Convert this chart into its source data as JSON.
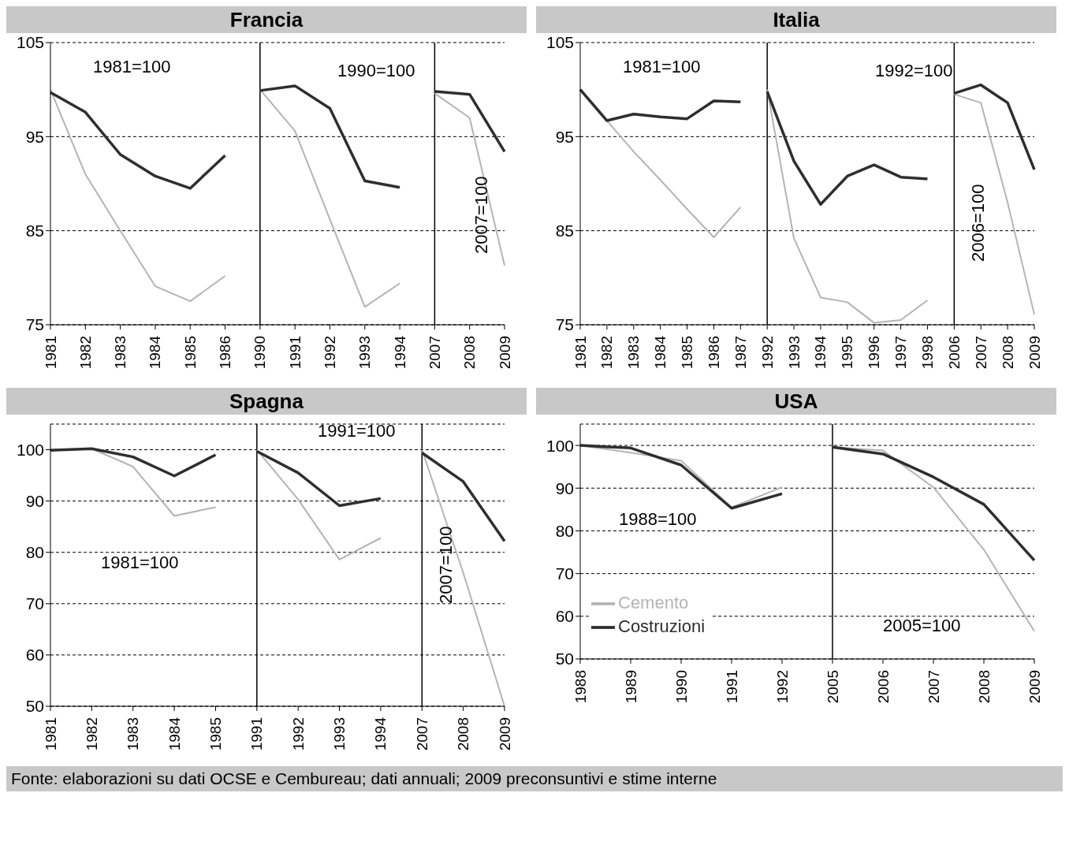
{
  "chart_data": [
    {
      "type": "line",
      "title": "Francia",
      "categories": [
        "1981",
        "1982",
        "1983",
        "1984",
        "1985",
        "1986",
        "1990",
        "1991",
        "1992",
        "1993",
        "1994",
        "2007",
        "2008",
        "2009"
      ],
      "ylim": [
        75,
        105
      ],
      "yticks": [
        75,
        85,
        95,
        105
      ],
      "grid": "y",
      "line_style": "solid",
      "marker": "none",
      "series": [
        {
          "color": "#b4b4b4",
          "values": [
            100,
            91,
            85,
            79.1,
            77.5,
            80.2,
            null,
            null,
            null,
            null,
            null,
            null,
            null,
            null
          ]
        },
        {
          "color": "#2e2e2e",
          "values": [
            99.7,
            97.6,
            93.1,
            90.8,
            89.5,
            93.0,
            null,
            null,
            null,
            null,
            null,
            null,
            null,
            null
          ]
        },
        {
          "color": "#b4b4b4",
          "values": [
            null,
            null,
            null,
            null,
            null,
            null,
            100,
            95.6,
            86.2,
            76.9,
            79.4,
            null,
            null,
            null
          ]
        },
        {
          "color": "#2e2e2e",
          "values": [
            null,
            null,
            null,
            null,
            null,
            null,
            99.9,
            100.4,
            98,
            90.3,
            89.6,
            null,
            null,
            null
          ]
        },
        {
          "color": "#b4b4b4",
          "values": [
            null,
            null,
            null,
            null,
            null,
            null,
            null,
            null,
            null,
            null,
            null,
            99.6,
            97,
            81.3
          ]
        },
        {
          "color": "#2e2e2e",
          "values": [
            null,
            null,
            null,
            null,
            null,
            null,
            null,
            null,
            null,
            null,
            null,
            99.8,
            99.5,
            93.4
          ]
        }
      ],
      "ref_lines": [
        {
          "axis": "x",
          "value": "1990",
          "color": "#000000"
        },
        {
          "axis": "x",
          "value": "2007",
          "color": "#000000"
        }
      ],
      "annotations": [
        "1981=100",
        "1990=100",
        "2007=100"
      ]
    },
    {
      "type": "line",
      "title": "Italia",
      "categories": [
        "1981",
        "1982",
        "1983",
        "1984",
        "1985",
        "1986",
        "1987",
        "1992",
        "1993",
        "1994",
        "1995",
        "1996",
        "1997",
        "1998",
        "2006",
        "2007",
        "2008",
        "2009"
      ],
      "ylim": [
        75,
        105
      ],
      "yticks": [
        75,
        85,
        95,
        105
      ],
      "grid": "y",
      "line_style": "solid",
      "marker": "none",
      "series": [
        {
          "color": "#b4b4b4",
          "values": [
            100,
            96.7,
            93.4,
            90.4,
            87.3,
            84.3,
            87.5,
            null,
            null,
            null,
            null,
            null,
            null,
            null,
            null,
            null,
            null,
            null
          ]
        },
        {
          "color": "#2e2e2e",
          "values": [
            100,
            96.7,
            97.4,
            97.1,
            96.9,
            98.8,
            98.7,
            null,
            null,
            null,
            null,
            null,
            null,
            null,
            null,
            null,
            null,
            null
          ]
        },
        {
          "color": "#b4b4b4",
          "values": [
            null,
            null,
            null,
            null,
            null,
            null,
            null,
            100,
            84.2,
            77.9,
            77.4,
            75.2,
            75.5,
            77.6,
            null,
            null,
            null,
            null
          ]
        },
        {
          "color": "#2e2e2e",
          "values": [
            null,
            null,
            null,
            null,
            null,
            null,
            null,
            99.8,
            92.4,
            87.8,
            90.8,
            92,
            90.7,
            90.5,
            null,
            null,
            null,
            null
          ]
        },
        {
          "color": "#b4b4b4",
          "values": [
            null,
            null,
            null,
            null,
            null,
            null,
            null,
            null,
            null,
            null,
            null,
            null,
            null,
            null,
            99.5,
            98.6,
            88,
            76.1
          ]
        },
        {
          "color": "#2e2e2e",
          "values": [
            null,
            null,
            null,
            null,
            null,
            null,
            null,
            null,
            null,
            null,
            null,
            null,
            null,
            null,
            99.6,
            100.5,
            98.6,
            91.5
          ]
        }
      ],
      "ref_lines": [
        {
          "axis": "x",
          "value": "1992",
          "color": "#000000"
        },
        {
          "axis": "x",
          "value": "2006",
          "color": "#000000"
        }
      ],
      "annotations": [
        "1981=100",
        "1992=100",
        "2006=100"
      ]
    },
    {
      "type": "line",
      "title": "Spagna",
      "categories": [
        "1981",
        "1982",
        "1983",
        "1984",
        "1985",
        "1991",
        "1992",
        "1993",
        "1994",
        "2007",
        "2008",
        "2009"
      ],
      "ylim": [
        50,
        105
      ],
      "yticks": [
        50,
        60,
        70,
        80,
        90,
        100
      ],
      "grid": "y",
      "line_style": "solid",
      "marker": "none",
      "series": [
        {
          "color": "#b4b4b4",
          "values": [
            100,
            100.2,
            96.7,
            87.1,
            88.8,
            null,
            null,
            null,
            null,
            null,
            null,
            null
          ]
        },
        {
          "color": "#2e2e2e",
          "values": [
            99.9,
            100.2,
            98.6,
            94.9,
            99,
            null,
            null,
            null,
            null,
            null,
            null,
            null
          ]
        },
        {
          "color": "#b4b4b4",
          "values": [
            null,
            null,
            null,
            null,
            null,
            100,
            90.3,
            78.6,
            82.8,
            null,
            null,
            null
          ]
        },
        {
          "color": "#2e2e2e",
          "values": [
            null,
            null,
            null,
            null,
            null,
            99.7,
            95.5,
            89.1,
            90.5,
            null,
            null,
            null
          ]
        },
        {
          "color": "#b4b4b4",
          "values": [
            null,
            null,
            null,
            null,
            null,
            null,
            null,
            null,
            null,
            100,
            76,
            50
          ]
        },
        {
          "color": "#2e2e2e",
          "values": [
            null,
            null,
            null,
            null,
            null,
            null,
            null,
            null,
            null,
            99.4,
            93.8,
            82.2
          ]
        }
      ],
      "ref_lines": [
        {
          "axis": "x",
          "value": "1991",
          "color": "#000000"
        },
        {
          "axis": "x",
          "value": "2007",
          "color": "#000000"
        }
      ],
      "annotations": [
        "1981=100",
        "1991=100",
        "2007=100"
      ]
    },
    {
      "type": "line",
      "title": "USA",
      "categories": [
        "1988",
        "1989",
        "1990",
        "1991",
        "1992",
        "2005",
        "2006",
        "2007",
        "2008",
        "2009"
      ],
      "ylim": [
        50,
        105
      ],
      "yticks": [
        50,
        60,
        70,
        80,
        90,
        100
      ],
      "grid": "y",
      "legend": "bottom left",
      "line_style": "solid",
      "marker": "none",
      "series": [
        {
          "name": "Cemento",
          "color": "#b4b4b4",
          "values": [
            100,
            98.3,
            96.4,
            85.5,
            90.2,
            null,
            null,
            null,
            null,
            null
          ]
        },
        {
          "name": "Costruzioni",
          "color": "#2e2e2e",
          "values": [
            100,
            99.4,
            95.4,
            85.3,
            88.7,
            null,
            null,
            null,
            null,
            null
          ]
        },
        {
          "color": "#b4b4b4",
          "values": [
            null,
            null,
            null,
            null,
            null,
            99.6,
            98.8,
            90.2,
            75.6,
            56.5
          ]
        },
        {
          "color": "#2e2e2e",
          "values": [
            null,
            null,
            null,
            null,
            null,
            99.6,
            98,
            92.6,
            86.2,
            73.1
          ]
        }
      ],
      "ref_lines": [
        {
          "axis": "x",
          "value": "2005",
          "color": "#000000"
        }
      ],
      "annotations": [
        "1988=100",
        "2005=100",
        "Fonte: elaborazioni su dati OCSE e Cembureau; dati annuali; 2009 preconsuntivi e stime interne"
      ]
    }
  ]
}
